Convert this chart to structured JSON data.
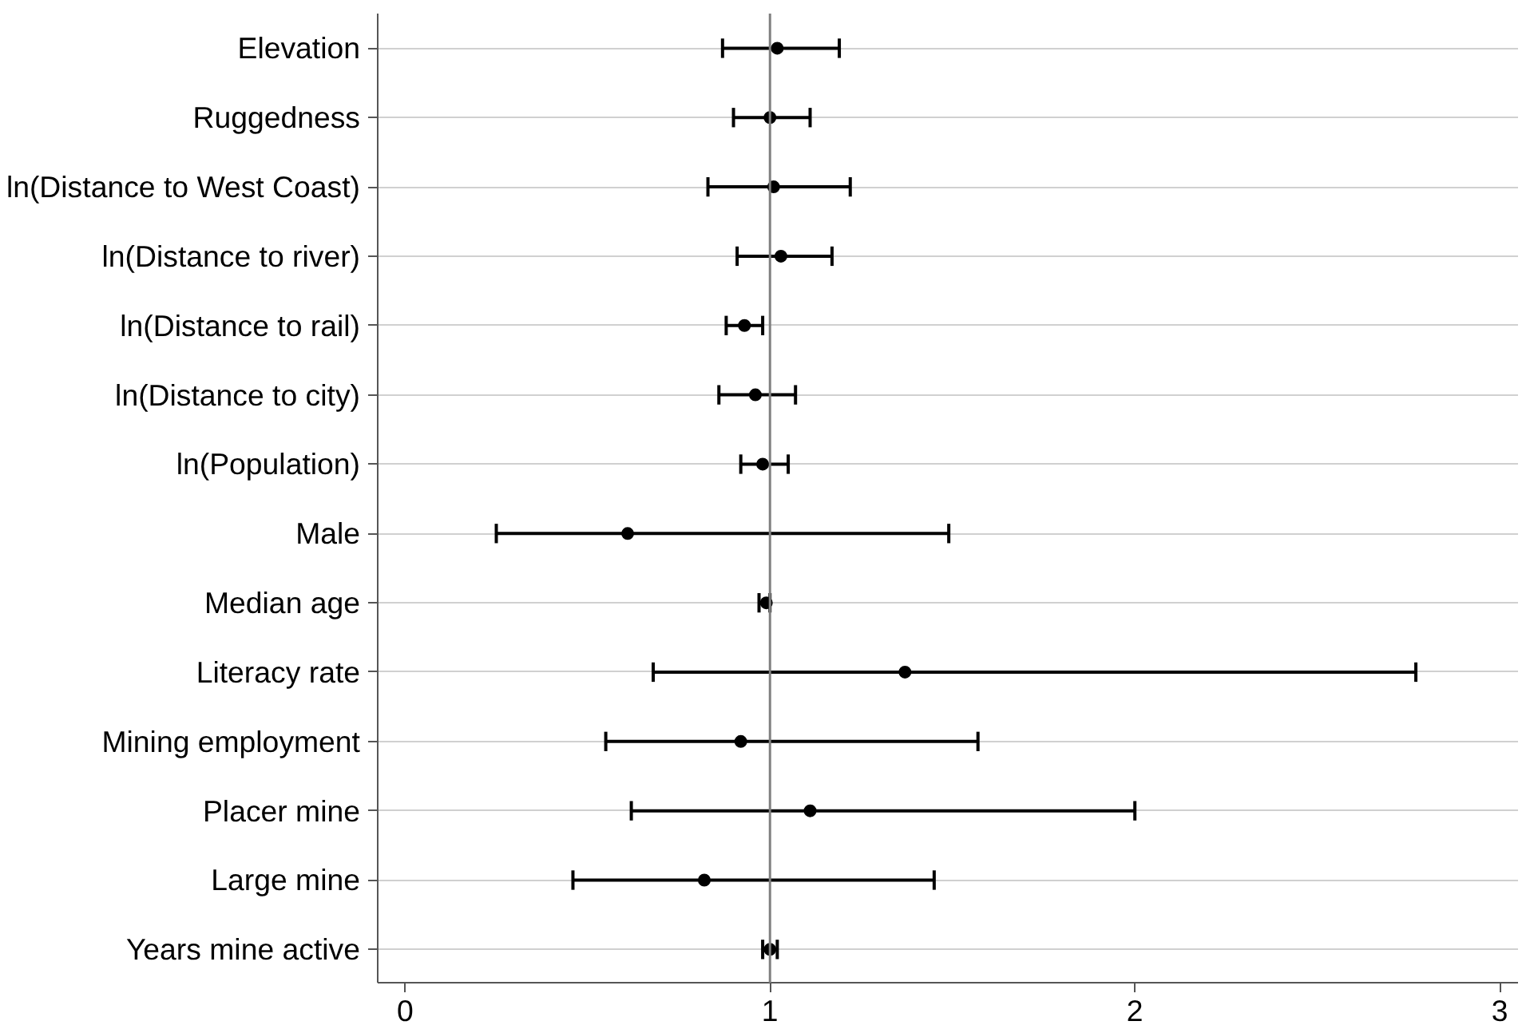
{
  "chart_data": {
    "type": "scatter",
    "orientation": "horizontal",
    "categories": [
      "Elevation",
      "Ruggedness",
      "ln(Distance to West Coast)",
      "ln(Distance to river)",
      "ln(Distance to rail)",
      "ln(Distance to city)",
      "ln(Population)",
      "Male",
      "Median age",
      "Literacy rate",
      "Mining employment",
      "Placer mine",
      "Large mine",
      "Years mine active"
    ],
    "series": [
      {
        "color": "#000000",
        "values": [
          1.02,
          1.0,
          1.01,
          1.03,
          0.93,
          0.96,
          0.98,
          0.61,
          0.99,
          1.37,
          0.92,
          1.11,
          0.82,
          1.0
        ],
        "errors": [
          [
            0.87,
            1.19
          ],
          [
            0.9,
            1.11
          ],
          [
            0.83,
            1.22
          ],
          [
            0.91,
            1.17
          ],
          [
            0.88,
            0.98
          ],
          [
            0.86,
            1.07
          ],
          [
            0.92,
            1.05
          ],
          [
            0.25,
            1.49
          ],
          [
            0.97,
            1.0
          ],
          [
            0.68,
            2.77
          ],
          [
            0.55,
            1.57
          ],
          [
            0.62,
            2.0
          ],
          [
            0.46,
            1.45
          ],
          [
            0.98,
            1.02
          ]
        ]
      }
    ],
    "xlim": [
      -0.075,
      3.05
    ],
    "xticks": [
      0,
      1,
      2,
      3
    ],
    "ref_lines": [
      {
        "axis": "x",
        "value": 1,
        "color": "#808080"
      }
    ],
    "grid": "y",
    "marker": "circle"
  }
}
